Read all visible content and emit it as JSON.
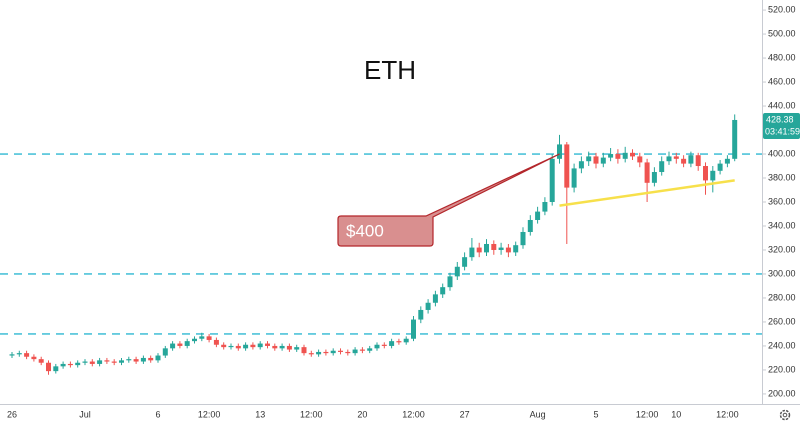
{
  "chart_data": {
    "type": "candlestick",
    "title": "ETH",
    "categories": [
      "26",
      null,
      null,
      null,
      null,
      null,
      null,
      null,
      null,
      null,
      "Jul",
      null,
      null,
      null,
      null,
      null,
      null,
      null,
      null,
      null,
      "6",
      null,
      null,
      null,
      null,
      null,
      null,
      "12:00",
      null,
      null,
      null,
      null,
      null,
      null,
      "13",
      null,
      null,
      null,
      null,
      null,
      null,
      "12:00",
      null,
      null,
      null,
      null,
      null,
      null,
      "20",
      null,
      null,
      null,
      null,
      null,
      null,
      "12:00",
      null,
      null,
      null,
      null,
      null,
      null,
      "27",
      null,
      null,
      null,
      null,
      null,
      null,
      null,
      null,
      null,
      "Aug",
      null,
      null,
      null,
      null,
      null,
      null,
      null,
      "5",
      null,
      null,
      null,
      null,
      null,
      null,
      "12:00",
      null,
      null,
      null,
      "10",
      null,
      null,
      null,
      null,
      null,
      null,
      "12:00",
      null
    ],
    "open": [
      232,
      233,
      234,
      231,
      229,
      226,
      219,
      223,
      225,
      224,
      226,
      227,
      225,
      228,
      227,
      226,
      228,
      229,
      227,
      230,
      228,
      232,
      238,
      242,
      240,
      244,
      246,
      248,
      245,
      241,
      239,
      240,
      238,
      241,
      239,
      242,
      240,
      238,
      240,
      237,
      239,
      234,
      233,
      235,
      234,
      236,
      235,
      234,
      237,
      236,
      238,
      241,
      240,
      244,
      243,
      246,
      262,
      270,
      276,
      283,
      289,
      298,
      306,
      314,
      322,
      318,
      325,
      320,
      322,
      318,
      324,
      335,
      345,
      352,
      360,
      396,
      408,
      372,
      388,
      394,
      398,
      392,
      397,
      400,
      396,
      401,
      398,
      393,
      376,
      385,
      394,
      398,
      396,
      392,
      399,
      390,
      378,
      386,
      392,
      396
    ],
    "high": [
      235,
      236,
      236,
      233,
      231,
      228,
      225,
      227,
      227,
      228,
      229,
      229,
      230,
      230,
      229,
      230,
      231,
      231,
      232,
      232,
      234,
      240,
      244,
      244,
      246,
      248,
      251,
      250,
      247,
      243,
      242,
      242,
      243,
      243,
      244,
      244,
      242,
      242,
      242,
      241,
      241,
      236,
      237,
      237,
      238,
      238,
      237,
      239,
      239,
      240,
      243,
      243,
      246,
      246,
      248,
      265,
      273,
      279,
      286,
      292,
      301,
      310,
      318,
      330,
      326,
      329,
      328,
      326,
      325,
      327,
      339,
      349,
      356,
      364,
      400,
      416,
      410,
      392,
      398,
      402,
      401,
      401,
      405,
      404,
      406,
      404,
      401,
      396,
      389,
      398,
      402,
      401,
      399,
      402,
      401,
      393,
      390,
      395,
      399,
      433
    ],
    "low": [
      230,
      231,
      229,
      227,
      224,
      216,
      217,
      221,
      222,
      222,
      224,
      223,
      223,
      225,
      224,
      224,
      226,
      225,
      225,
      226,
      226,
      230,
      236,
      238,
      238,
      242,
      244,
      243,
      239,
      237,
      237,
      236,
      236,
      237,
      237,
      238,
      236,
      236,
      235,
      235,
      232,
      231,
      231,
      232,
      232,
      233,
      232,
      232,
      234,
      234,
      236,
      238,
      238,
      241,
      241,
      244,
      259,
      267,
      273,
      280,
      286,
      295,
      303,
      311,
      314,
      315,
      316,
      316,
      314,
      315,
      321,
      332,
      342,
      349,
      357,
      392,
      325,
      368,
      384,
      390,
      388,
      389,
      394,
      392,
      393,
      395,
      389,
      360,
      373,
      382,
      391,
      392,
      389,
      389,
      386,
      366,
      368,
      383,
      389,
      394
    ],
    "close": [
      233,
      234,
      231,
      229,
      226,
      219,
      223,
      225,
      224,
      226,
      227,
      225,
      228,
      227,
      226,
      228,
      229,
      227,
      230,
      228,
      232,
      238,
      242,
      240,
      244,
      246,
      248,
      245,
      241,
      239,
      240,
      238,
      241,
      239,
      242,
      240,
      238,
      240,
      237,
      239,
      234,
      233,
      235,
      234,
      236,
      235,
      234,
      237,
      236,
      238,
      241,
      240,
      244,
      243,
      246,
      262,
      270,
      276,
      283,
      289,
      298,
      306,
      314,
      322,
      318,
      325,
      320,
      322,
      318,
      324,
      335,
      345,
      352,
      360,
      396,
      408,
      372,
      388,
      394,
      398,
      392,
      397,
      400,
      396,
      401,
      398,
      393,
      376,
      385,
      394,
      398,
      396,
      392,
      399,
      390,
      378,
      386,
      392,
      396,
      428.38
    ],
    "up_color": "#26a69a",
    "down_color": "#ef5350",
    "ylim": [
      191.6,
      528.4
    ],
    "yticks": [
      {
        "value": 200,
        "label": "200.00"
      },
      {
        "value": 220,
        "label": "220.00"
      },
      {
        "value": 240,
        "label": "240.00"
      },
      {
        "value": 260,
        "label": "260.00"
      },
      {
        "value": 280,
        "label": "280.00"
      },
      {
        "value": 300,
        "label": "300.00"
      },
      {
        "value": 320,
        "label": "320.00"
      },
      {
        "value": 340,
        "label": "340.00"
      },
      {
        "value": 360,
        "label": "360.00"
      },
      {
        "value": 380,
        "label": "380.00"
      },
      {
        "value": 400,
        "label": "400.00"
      },
      {
        "value": 420,
        "label": "420.00"
      },
      {
        "value": 440,
        "label": "440.00"
      },
      {
        "value": 460,
        "label": "460.00"
      },
      {
        "value": 480,
        "label": "480.00"
      },
      {
        "value": 500,
        "label": "500.00"
      },
      {
        "value": 520,
        "label": "520.00"
      }
    ],
    "horizontal_lines": [
      400,
      300,
      250
    ],
    "horizontal_line_color": "#4fc3d9",
    "trendline": {
      "start": [
        75,
        357
      ],
      "end": [
        99,
        378
      ],
      "color": "#f7e04b"
    },
    "callout": {
      "text": "$400",
      "target": [
        75,
        400
      ]
    },
    "last_price": 428.38,
    "countdown": "03:41:59"
  }
}
